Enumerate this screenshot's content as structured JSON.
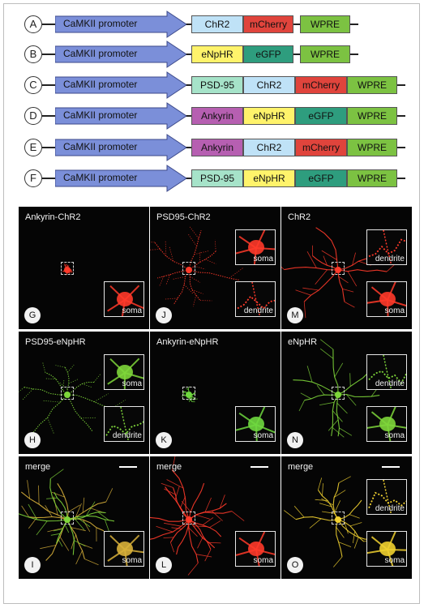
{
  "constructs": [
    {
      "letter": "A",
      "promoter": "CaMKII promoter",
      "segments": [
        {
          "label": "ChR2",
          "color": "#bfe2f7"
        },
        {
          "label": "mCherry",
          "color": "#e0443c"
        },
        {
          "label": "WPRE",
          "color": "#7cc242"
        }
      ]
    },
    {
      "letter": "B",
      "promoter": "CaMKII promoter",
      "segments": [
        {
          "label": "eNpHR",
          "color": "#fff36b"
        },
        {
          "label": "eGFP",
          "color": "#2e9d7e"
        },
        {
          "label": "WPRE",
          "color": "#7cc242"
        }
      ]
    },
    {
      "letter": "C",
      "promoter": "CaMKII promoter",
      "segments": [
        {
          "label": "PSD-95",
          "color": "#a6e3c9"
        },
        {
          "label": "ChR2",
          "color": "#bfe2f7"
        },
        {
          "label": "mCherry",
          "color": "#e0443c"
        },
        {
          "label": "WPRE",
          "color": "#7cc242"
        }
      ]
    },
    {
      "letter": "D",
      "promoter": "CaMKII promoter",
      "segments": [
        {
          "label": "Ankyrin",
          "color": "#b65fb1"
        },
        {
          "label": "eNpHR",
          "color": "#fff36b"
        },
        {
          "label": "eGFP",
          "color": "#2e9d7e"
        },
        {
          "label": "WPRE",
          "color": "#7cc242"
        }
      ]
    },
    {
      "letter": "E",
      "promoter": "CaMKII promoter",
      "segments": [
        {
          "label": "Ankyrin",
          "color": "#b65fb1"
        },
        {
          "label": "ChR2",
          "color": "#bfe2f7"
        },
        {
          "label": "mCherry",
          "color": "#e0443c"
        },
        {
          "label": "WPRE",
          "color": "#7cc242"
        }
      ]
    },
    {
      "letter": "F",
      "promoter": "CaMKII promoter",
      "segments": [
        {
          "label": "PSD-95",
          "color": "#a6e3c9"
        },
        {
          "label": "eNpHR",
          "color": "#fff36b"
        },
        {
          "label": "eGFP",
          "color": "#2e9d7e"
        },
        {
          "label": "WPRE",
          "color": "#7cc242"
        }
      ]
    }
  ],
  "promoter_color": "#7b8fd9",
  "panels": [
    {
      "letter": "G",
      "label": "Ankyrin-ChR2",
      "color": "#ff3a2a",
      "insets": [
        "soma"
      ],
      "scale_bar": false
    },
    {
      "letter": "J",
      "label": "PSD95-ChR2",
      "color": "#ff3a2a",
      "insets": [
        "soma",
        "dendrite"
      ],
      "scale_bar": false
    },
    {
      "letter": "M",
      "label": "ChR2",
      "color": "#ff3a2a",
      "insets": [
        "dendrite",
        "soma"
      ],
      "scale_bar": false
    },
    {
      "letter": "H",
      "label": "PSD95-eNpHR",
      "color": "#7ed63a",
      "insets": [
        "soma",
        "dendrite"
      ],
      "scale_bar": false
    },
    {
      "letter": "K",
      "label": "Ankyrin-eNpHR",
      "color": "#6fd83f",
      "insets": [
        "soma"
      ],
      "scale_bar": false
    },
    {
      "letter": "N",
      "label": "eNpHR",
      "color": "#7ed63a",
      "insets": [
        "dendrite",
        "soma"
      ],
      "scale_bar": false
    },
    {
      "letter": "I",
      "label": "merge",
      "color": "#d8b03a",
      "insets": [
        "soma"
      ],
      "scale_bar": true
    },
    {
      "letter": "L",
      "label": "merge",
      "color": "#ff3a2a",
      "insets": [
        "soma"
      ],
      "scale_bar": true
    },
    {
      "letter": "O",
      "label": "merge",
      "color": "#f0d030",
      "insets": [
        "dendrite",
        "soma"
      ],
      "scale_bar": true
    }
  ]
}
